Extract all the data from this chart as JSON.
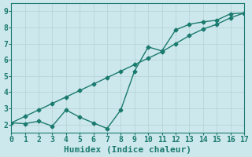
{
  "title": "",
  "xlabel": "Humidex (Indice chaleur)",
  "ylabel": "",
  "background_color": "#cde8ed",
  "line_color": "#1a7a6e",
  "grid_color": "#b8d4d8",
  "x_data": [
    0,
    1,
    2,
    3,
    4,
    5,
    6,
    7,
    8,
    9,
    10,
    11,
    12,
    13,
    14,
    15,
    16,
    17
  ],
  "y_line1": [
    2.1,
    2.05,
    2.2,
    1.9,
    2.9,
    2.45,
    2.1,
    1.75,
    2.9,
    5.3,
    6.8,
    6.55,
    7.85,
    8.2,
    8.35,
    8.45,
    8.85,
    8.9
  ],
  "y_line2": [
    2.1,
    2.5,
    2.9,
    3.3,
    3.7,
    4.1,
    4.5,
    4.9,
    5.3,
    5.7,
    6.1,
    6.5,
    7.0,
    7.5,
    7.9,
    8.2,
    8.6,
    8.9
  ],
  "xlim": [
    0,
    17
  ],
  "ylim": [
    1.5,
    9.5
  ],
  "xticks": [
    0,
    1,
    2,
    3,
    4,
    5,
    6,
    7,
    8,
    9,
    10,
    11,
    12,
    13,
    14,
    15,
    16,
    17
  ],
  "yticks": [
    2,
    3,
    4,
    5,
    6,
    7,
    8,
    9
  ],
  "marker": "D",
  "marker_size": 2.5,
  "line_width": 1.0,
  "tick_label_color": "#1a7a6e",
  "xlabel_color": "#1a7a6e",
  "xlabel_fontsize": 8,
  "tick_fontsize": 7
}
